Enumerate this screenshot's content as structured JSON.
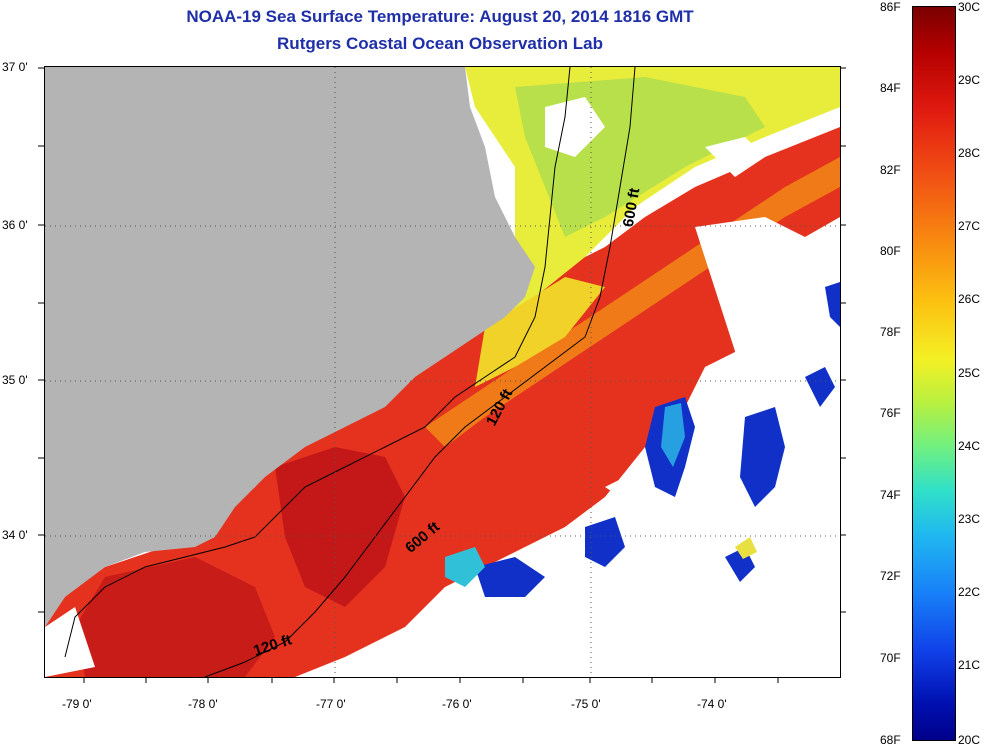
{
  "title": "NOAA-19 Sea Surface Temperature:  August 20, 2014 1816 GMT",
  "subtitle": "Rutgers Coastal Ocean Observation Lab",
  "lat_labels": [
    "37 0'",
    "36 0'",
    "35 0'",
    "34 0'"
  ],
  "lon_labels": [
    "-79 0'",
    "-78 0'",
    "-77 0'",
    "-76 0'",
    "-75 0'",
    "-74 0'"
  ],
  "contours": {
    "c1": "600 ft",
    "c2": "120 ft",
    "c3": "600 ft",
    "c4": "120 ft"
  },
  "colorbar": {
    "range_f": [
      68,
      86
    ],
    "range_c": [
      20,
      30
    ],
    "f_labels": [
      "86F",
      "84F",
      "82F",
      "80F",
      "78F",
      "76F",
      "74F",
      "72F",
      "70F",
      "68F"
    ],
    "c_labels": [
      "30C",
      "29C",
      "28C",
      "27C",
      "26C",
      "25C",
      "24C",
      "23C",
      "22C",
      "21C",
      "20C"
    ]
  },
  "colors": {
    "title": "#1f2fa8",
    "land": "#b4b4b4",
    "warm": "#e8321c",
    "cool": "#e6f23c",
    "cold": "#1030c8"
  }
}
